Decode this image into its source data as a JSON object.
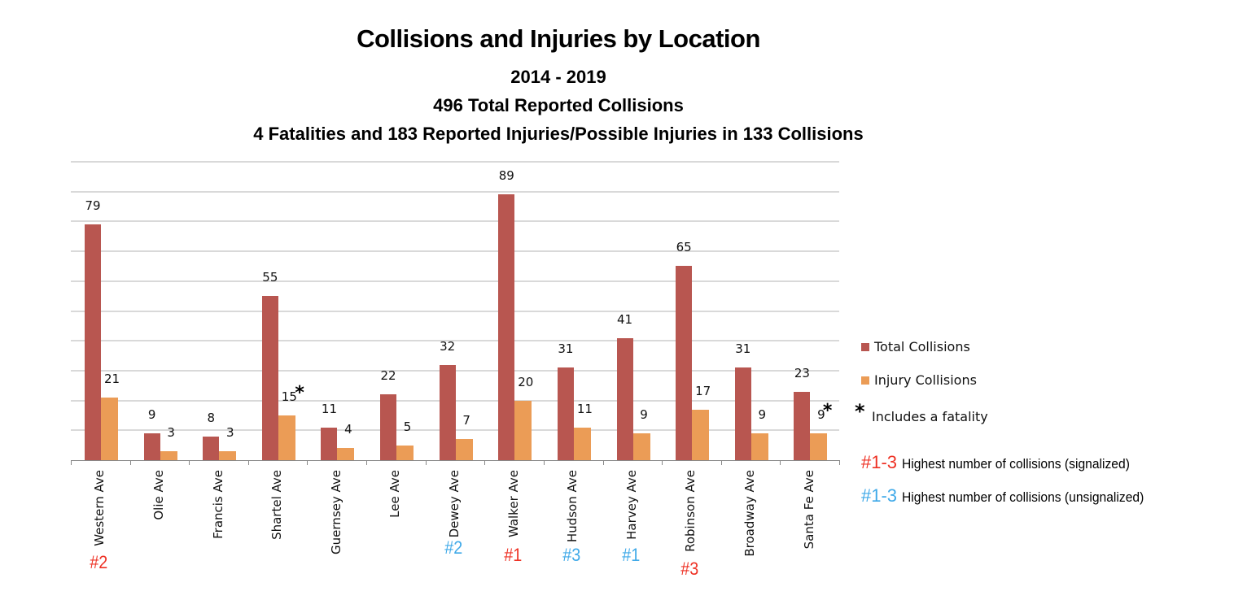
{
  "chart_data": {
    "type": "bar",
    "title": "Collisions and Injuries by Location",
    "subtitles": [
      "2014 - 2019",
      "496 Total Reported Collisions",
      "4 Fatalities and 183 Reported Injuries/Possible Injuries in 133 Collisions"
    ],
    "xlabel": "",
    "ylabel": "",
    "ylim": [
      0,
      100
    ],
    "grid": true,
    "legend_position": "right",
    "categories": [
      "Western Ave",
      "Olie Ave",
      "Francis Ave",
      "Shartel Ave",
      "Guernsey Ave",
      "Lee Ave",
      "Dewey Ave",
      "Walker Ave",
      "Hudson Ave",
      "Harvey Ave",
      "Robinson Ave",
      "Broadway Ave",
      "Santa Fe Ave"
    ],
    "series": [
      {
        "name": "Total Collisions",
        "color": "#B85650",
        "values": [
          79,
          9,
          8,
          55,
          11,
          22,
          32,
          89,
          31,
          41,
          65,
          31,
          23
        ]
      },
      {
        "name": "Injury Collisions",
        "color": "#EB9C56",
        "values": [
          21,
          3,
          3,
          15,
          4,
          5,
          7,
          20,
          11,
          9,
          17,
          9,
          9
        ]
      }
    ],
    "annotations": {
      "fatality_marker": "*",
      "fatality_categories": [
        "Shartel Ave",
        "Santa Fe Ave"
      ],
      "ranks": [
        {
          "category": "Western Ave",
          "label": "#2",
          "type": "signalized",
          "color": "#EE3124"
        },
        {
          "category": "Dewey Ave",
          "label": "#2",
          "type": "unsignalized",
          "color": "#3FA9E8"
        },
        {
          "category": "Walker Ave",
          "label": "#1",
          "type": "signalized",
          "color": "#EE3124"
        },
        {
          "category": "Hudson Ave",
          "label": "#3",
          "type": "unsignalized",
          "color": "#3FA9E8"
        },
        {
          "category": "Harvey Ave",
          "label": "#1",
          "type": "unsignalized",
          "color": "#3FA9E8"
        },
        {
          "category": "Robinson Ave",
          "label": "#3",
          "type": "signalized",
          "color": "#EE3124"
        }
      ]
    }
  },
  "header": {
    "title": "Collisions and Injuries by Location",
    "period": "2014 - 2019",
    "total": "496 Total Reported Collisions",
    "summary": "4 Fatalities and 183 Reported Injuries/Possible Injuries in 133 Collisions"
  },
  "legend": {
    "total": "Total Collisions",
    "injury": "Injury Collisions",
    "star": "*",
    "fatality": "Includes a fatality",
    "signalized_code": "#1-3",
    "signalized_desc": "Highest number of collisions (signalized)",
    "unsignalized_code": "#1-3",
    "unsignalized_desc": "Highest number of collisions (unsignalized)"
  },
  "colors": {
    "total": "#B85650",
    "injury": "#EB9C56",
    "signalized": "#EE3124",
    "unsignalized": "#3FA9E8"
  }
}
